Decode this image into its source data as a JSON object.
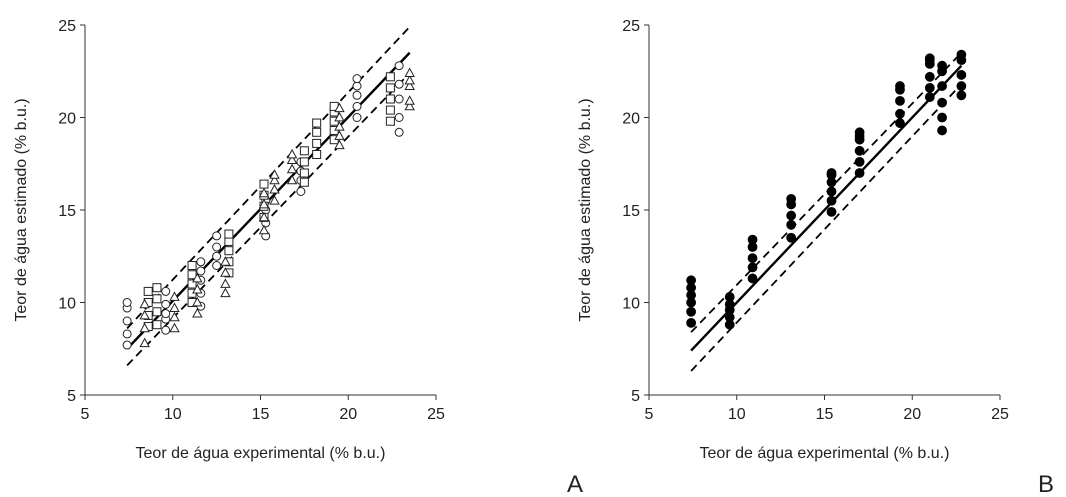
{
  "chart_data": [
    {
      "type": "scatter",
      "panel_label": "A",
      "xlabel": "Teor de água experimental (% b.u.)",
      "ylabel": "Teor de água estimado (% b.u.)",
      "xlim": [
        5,
        25
      ],
      "ylim": [
        5,
        25
      ],
      "xticks": [
        5,
        10,
        15,
        20,
        25
      ],
      "yticks": [
        5,
        10,
        15,
        20,
        25
      ],
      "grid": false,
      "series": [
        {
          "marker": "open-circle",
          "points": [
            [
              7.4,
              7.7
            ],
            [
              7.4,
              8.3
            ],
            [
              7.4,
              9.0
            ],
            [
              7.4,
              9.7
            ],
            [
              7.4,
              10.0
            ],
            [
              9.6,
              8.5
            ],
            [
              9.6,
              9.1
            ],
            [
              9.6,
              9.4
            ],
            [
              9.6,
              9.9
            ],
            [
              9.6,
              10.6
            ],
            [
              11.6,
              9.8
            ],
            [
              11.6,
              10.5
            ],
            [
              11.6,
              11.2
            ],
            [
              11.6,
              11.7
            ],
            [
              11.6,
              12.2
            ],
            [
              12.5,
              12.0
            ],
            [
              12.5,
              12.5
            ],
            [
              12.5,
              13.0
            ],
            [
              12.5,
              13.6
            ],
            [
              15.3,
              13.6
            ],
            [
              15.3,
              14.3
            ],
            [
              15.3,
              15.0
            ],
            [
              15.3,
              15.5
            ],
            [
              17.3,
              16.0
            ],
            [
              17.3,
              16.6
            ],
            [
              17.3,
              17.1
            ],
            [
              17.3,
              17.6
            ],
            [
              20.5,
              20.0
            ],
            [
              20.5,
              20.6
            ],
            [
              20.5,
              21.2
            ],
            [
              20.5,
              21.7
            ],
            [
              20.5,
              22.1
            ],
            [
              22.9,
              19.2
            ],
            [
              22.9,
              20.0
            ],
            [
              22.9,
              21.0
            ],
            [
              22.9,
              21.8
            ],
            [
              22.9,
              22.8
            ]
          ]
        },
        {
          "marker": "open-square",
          "points": [
            [
              8.6,
              8.7
            ],
            [
              8.6,
              9.3
            ],
            [
              8.6,
              10.0
            ],
            [
              8.6,
              10.6
            ],
            [
              9.1,
              8.8
            ],
            [
              9.1,
              9.5
            ],
            [
              9.1,
              10.2
            ],
            [
              9.1,
              10.8
            ],
            [
              11.1,
              10.0
            ],
            [
              11.1,
              10.5
            ],
            [
              11.1,
              11.0
            ],
            [
              11.1,
              11.5
            ],
            [
              11.1,
              12.0
            ],
            [
              13.2,
              11.6
            ],
            [
              13.2,
              12.2
            ],
            [
              13.2,
              12.8
            ],
            [
              13.2,
              13.3
            ],
            [
              13.2,
              13.7
            ],
            [
              15.2,
              14.6
            ],
            [
              15.2,
              15.2
            ],
            [
              15.2,
              15.8
            ],
            [
              15.2,
              16.4
            ],
            [
              17.5,
              16.5
            ],
            [
              17.5,
              17.0
            ],
            [
              17.5,
              17.6
            ],
            [
              17.5,
              18.2
            ],
            [
              18.2,
              18.0
            ],
            [
              18.2,
              18.6
            ],
            [
              18.2,
              19.2
            ],
            [
              18.2,
              19.7
            ],
            [
              19.2,
              18.8
            ],
            [
              19.2,
              19.3
            ],
            [
              19.2,
              19.8
            ],
            [
              19.2,
              20.3
            ],
            [
              19.2,
              20.6
            ],
            [
              22.4,
              19.8
            ],
            [
              22.4,
              20.4
            ],
            [
              22.4,
              21.0
            ],
            [
              22.4,
              21.6
            ],
            [
              22.4,
              22.2
            ]
          ]
        },
        {
          "marker": "open-triangle",
          "points": [
            [
              8.4,
              7.8
            ],
            [
              8.4,
              8.6
            ],
            [
              8.4,
              9.3
            ],
            [
              8.4,
              9.9
            ],
            [
              10.1,
              8.6
            ],
            [
              10.1,
              9.2
            ],
            [
              10.1,
              9.7
            ],
            [
              10.1,
              10.3
            ],
            [
              11.4,
              9.4
            ],
            [
              11.4,
              10.0
            ],
            [
              11.4,
              10.7
            ],
            [
              11.4,
              11.3
            ],
            [
              13.0,
              10.5
            ],
            [
              13.0,
              11.0
            ],
            [
              13.0,
              11.6
            ],
            [
              13.0,
              12.2
            ],
            [
              15.2,
              13.9
            ],
            [
              15.2,
              14.6
            ],
            [
              15.2,
              15.3
            ],
            [
              15.2,
              15.9
            ],
            [
              15.8,
              15.5
            ],
            [
              15.8,
              16.1
            ],
            [
              15.8,
              16.6
            ],
            [
              15.8,
              16.9
            ],
            [
              16.8,
              16.6
            ],
            [
              16.8,
              17.2
            ],
            [
              16.8,
              17.7
            ],
            [
              16.8,
              18.0
            ],
            [
              19.5,
              18.5
            ],
            [
              19.5,
              19.0
            ],
            [
              19.5,
              19.5
            ],
            [
              19.5,
              20.0
            ],
            [
              19.5,
              20.5
            ],
            [
              23.5,
              20.6
            ],
            [
              23.5,
              20.9
            ],
            [
              23.5,
              21.7
            ],
            [
              23.5,
              22.0
            ],
            [
              23.5,
              22.4
            ]
          ]
        }
      ],
      "fit_line": [
        [
          7.4,
          7.5
        ],
        [
          23.5,
          23.5
        ]
      ],
      "confidence_upper": [
        [
          7.4,
          8.6
        ],
        [
          23.5,
          24.9
        ]
      ],
      "confidence_lower": [
        [
          7.4,
          6.6
        ],
        [
          23.5,
          22.4
        ]
      ]
    },
    {
      "type": "scatter",
      "panel_label": "B",
      "xlabel": "Teor de água experimental (% b.u.)",
      "ylabel": "Teor de água estimado (% b.u.)",
      "xlim": [
        5,
        25
      ],
      "ylim": [
        5,
        25
      ],
      "xticks": [
        5,
        10,
        15,
        20,
        25
      ],
      "yticks": [
        5,
        10,
        15,
        20,
        25
      ],
      "grid": false,
      "series": [
        {
          "marker": "filled-circle",
          "points": [
            [
              7.4,
              8.9
            ],
            [
              7.4,
              9.5
            ],
            [
              7.4,
              10.0
            ],
            [
              7.4,
              10.4
            ],
            [
              7.4,
              10.8
            ],
            [
              7.4,
              11.2
            ],
            [
              9.6,
              8.8
            ],
            [
              9.6,
              9.2
            ],
            [
              9.6,
              9.6
            ],
            [
              9.6,
              9.9
            ],
            [
              9.6,
              10.3
            ],
            [
              10.9,
              11.3
            ],
            [
              10.9,
              11.9
            ],
            [
              10.9,
              12.4
            ],
            [
              10.9,
              13.0
            ],
            [
              10.9,
              13.4
            ],
            [
              13.1,
              13.5
            ],
            [
              13.1,
              14.2
            ],
            [
              13.1,
              14.7
            ],
            [
              13.1,
              15.3
            ],
            [
              13.1,
              15.6
            ],
            [
              15.4,
              14.9
            ],
            [
              15.4,
              15.5
            ],
            [
              15.4,
              16.0
            ],
            [
              15.4,
              16.5
            ],
            [
              15.4,
              16.9
            ],
            [
              15.4,
              17.0
            ],
            [
              17.0,
              17.0
            ],
            [
              17.0,
              17.6
            ],
            [
              17.0,
              18.2
            ],
            [
              17.0,
              18.8
            ],
            [
              17.0,
              19.0
            ],
            [
              17.0,
              19.2
            ],
            [
              19.3,
              19.7
            ],
            [
              19.3,
              20.2
            ],
            [
              19.3,
              20.9
            ],
            [
              19.3,
              21.5
            ],
            [
              19.3,
              21.7
            ],
            [
              21.0,
              21.1
            ],
            [
              21.0,
              21.6
            ],
            [
              21.0,
              22.2
            ],
            [
              21.0,
              22.9
            ],
            [
              21.0,
              23.1
            ],
            [
              21.0,
              23.2
            ],
            [
              21.7,
              19.3
            ],
            [
              21.7,
              20.0
            ],
            [
              21.7,
              20.8
            ],
            [
              21.7,
              21.7
            ],
            [
              21.7,
              22.5
            ],
            [
              21.7,
              22.8
            ],
            [
              22.8,
              21.2
            ],
            [
              22.8,
              21.7
            ],
            [
              22.8,
              22.3
            ],
            [
              22.8,
              23.1
            ],
            [
              22.8,
              23.4
            ]
          ]
        }
      ],
      "fit_line": [
        [
          7.4,
          7.4
        ],
        [
          22.8,
          22.8
        ]
      ],
      "confidence_upper": [
        [
          7.4,
          8.4
        ],
        [
          22.8,
          23.5
        ]
      ],
      "confidence_lower": [
        [
          7.4,
          6.3
        ],
        [
          22.8,
          21.8
        ]
      ]
    }
  ]
}
